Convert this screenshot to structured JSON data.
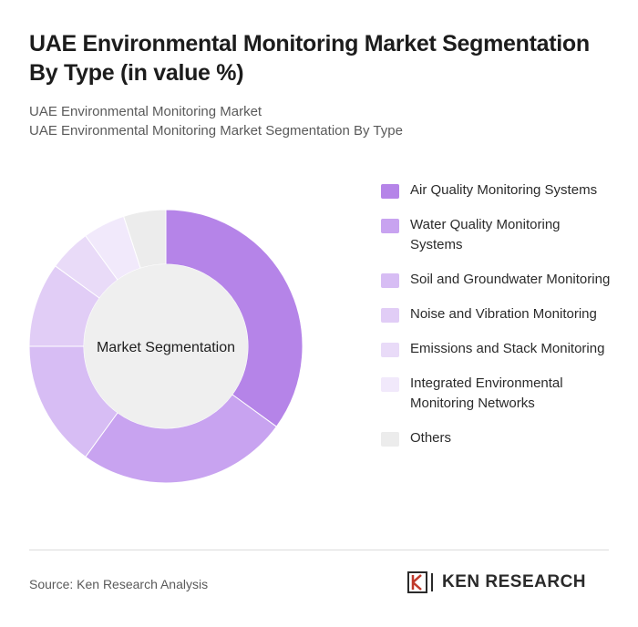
{
  "header": {
    "title": "UAE Environmental Monitoring Market Segmentation By Type (in value %)",
    "subtitle1": "UAE Environmental Monitoring Market",
    "subtitle2": "UAE Environmental Monitoring Market Segmentation By Type"
  },
  "chart_data": {
    "type": "pie",
    "center_label": "Market Segmentation",
    "categories": [
      "Air Quality Monitoring Systems",
      "Water Quality Monitoring Systems",
      "Soil and Groundwater Monitoring",
      "Noise and Vibration Monitoring",
      "Emissions and Stack Monitoring",
      "Integrated Environmental Monitoring Networks",
      "Others"
    ],
    "values": [
      35,
      25,
      15,
      10,
      5,
      5,
      5
    ],
    "colors": [
      "#b584e8",
      "#c8a3f0",
      "#d7bdf4",
      "#e1cdf6",
      "#e9dbf8",
      "#f1e9fb",
      "#ececec"
    ],
    "legend_position": "right"
  },
  "footer": {
    "source": "Source: Ken Research Analysis",
    "brand": "KEN RESEARCH"
  }
}
